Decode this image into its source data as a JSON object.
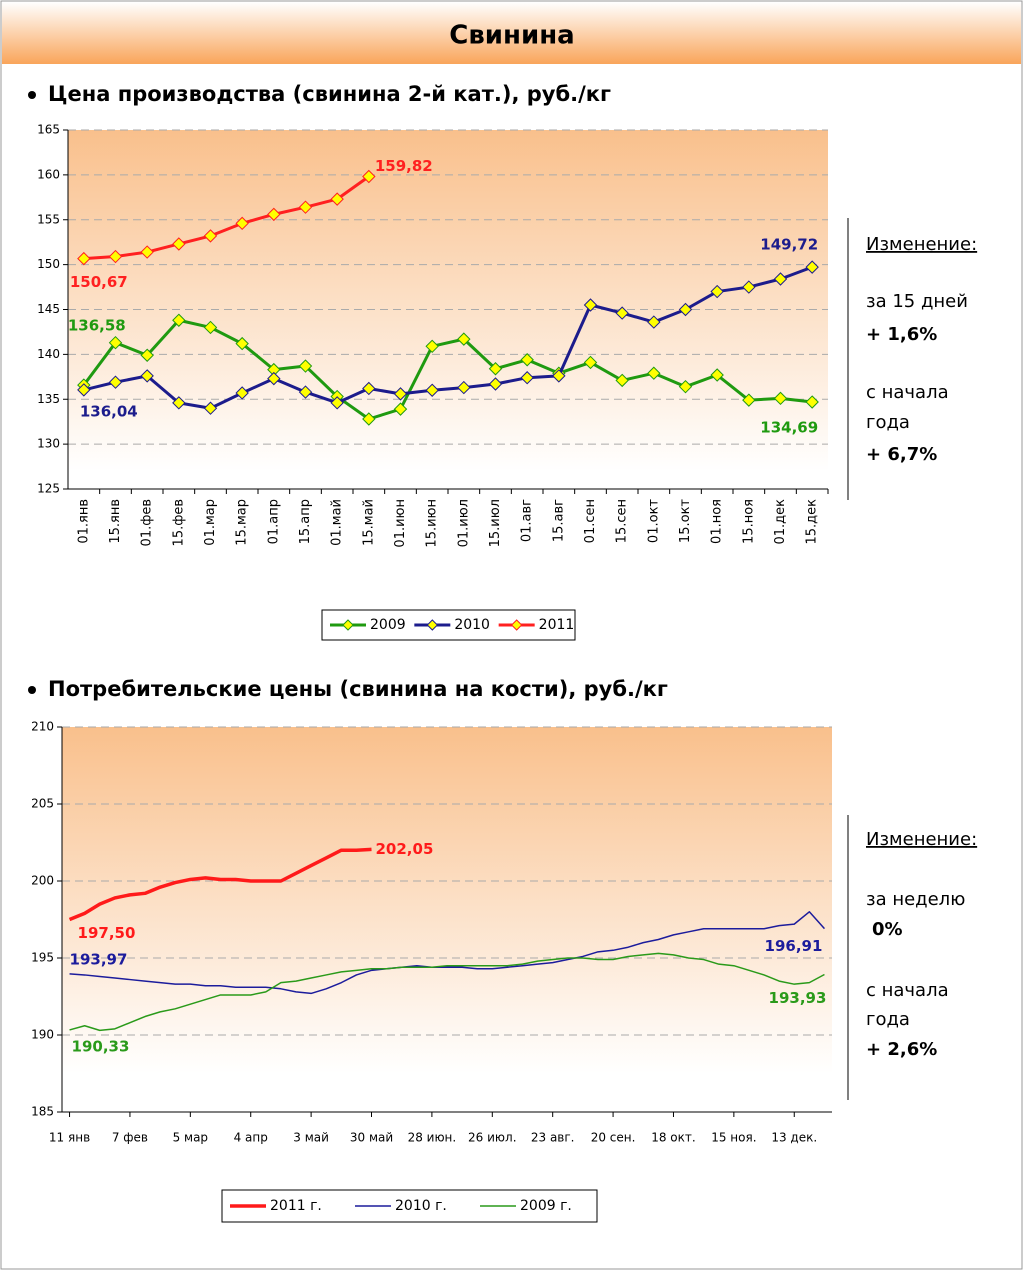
{
  "header": {
    "title": "Свинина"
  },
  "chart_data": [
    {
      "type": "line",
      "title": "Цена производства (свинина 2-й кат.), руб./кг",
      "categories": [
        "01.янв",
        "15.янв",
        "01.фев",
        "15.фев",
        "01.мар",
        "15.мар",
        "01.апр",
        "15.апр",
        "01.май",
        "15.май",
        "01.июн",
        "15.июн",
        "01.июл",
        "15.июл",
        "01.авг",
        "15.авг",
        "01.сен",
        "15.сен",
        "01.окт",
        "15.окт",
        "01.ноя",
        "15.ноя",
        "01.дек",
        "15.дек"
      ],
      "series": [
        {
          "name": "2009",
          "color": "#1f9a10",
          "width": 3,
          "values": [
            136.58,
            141.3,
            139.9,
            143.8,
            143.0,
            141.2,
            138.3,
            138.7,
            135.3,
            132.8,
            133.9,
            140.9,
            141.7,
            138.4,
            139.4,
            137.9,
            139.1,
            137.1,
            137.9,
            136.4,
            137.7,
            134.9,
            135.1,
            134.69
          ],
          "value_labels": [
            "136,58",
            null,
            null,
            null,
            null,
            null,
            null,
            null,
            null,
            null,
            null,
            null,
            null,
            null,
            null,
            null,
            null,
            null,
            null,
            null,
            null,
            null,
            null,
            "134,69"
          ]
        },
        {
          "name": "2010",
          "color": "#1c1c8c",
          "width": 3,
          "values": [
            136.04,
            136.9,
            137.6,
            134.6,
            134.0,
            135.7,
            137.3,
            135.8,
            134.6,
            136.2,
            135.6,
            136.0,
            136.3,
            136.7,
            137.4,
            137.6,
            145.5,
            144.6,
            143.6,
            145.0,
            147.0,
            147.5,
            148.4,
            149.72
          ],
          "value_labels": [
            "136,04",
            null,
            null,
            null,
            null,
            null,
            null,
            null,
            null,
            null,
            null,
            null,
            null,
            null,
            null,
            null,
            null,
            null,
            null,
            null,
            null,
            null,
            null,
            "149,72"
          ]
        },
        {
          "name": "2011",
          "color": "#ff2020",
          "width": 3,
          "values": [
            150.67,
            150.9,
            151.4,
            152.3,
            153.2,
            154.6,
            155.6,
            156.4,
            157.3,
            159.82,
            null,
            null,
            null,
            null,
            null,
            null,
            null,
            null,
            null,
            null,
            null,
            null,
            null,
            null
          ],
          "value_labels": [
            "150,67",
            null,
            null,
            null,
            null,
            null,
            null,
            null,
            null,
            "159,82",
            null,
            null,
            null,
            null,
            null,
            null,
            null,
            null,
            null,
            null,
            null,
            null,
            null,
            null
          ]
        }
      ],
      "markers": true,
      "marker_color": "#ffff00",
      "ylim": [
        125,
        165
      ],
      "yticks": [
        125,
        130,
        135,
        140,
        145,
        150,
        155,
        160,
        165
      ],
      "grid": true,
      "legend": "bottom",
      "annotations": [
        "Изменение:",
        "за 15 дней",
        "+ 1,6%",
        "с начала",
        "года",
        "+ 6,7%"
      ]
    },
    {
      "type": "line",
      "title": "Потребительские цены (свинина на кости), руб./кг",
      "categories": [
        "11 янв",
        null,
        null,
        null,
        "7 фев",
        null,
        null,
        null,
        "5 мар",
        null,
        null,
        null,
        "4 апр",
        null,
        null,
        null,
        "3 май",
        null,
        null,
        null,
        "30 май",
        null,
        null,
        null,
        "28 июн.",
        null,
        null,
        null,
        "26 июл.",
        null,
        null,
        null,
        "23 авг.",
        null,
        null,
        null,
        "20 сен.",
        null,
        null,
        null,
        "18 окт.",
        null,
        null,
        null,
        "15 ноя.",
        null,
        null,
        null,
        "13 дек.",
        null,
        null
      ],
      "series": [
        {
          "name": "2011 г.",
          "color": "#ff1a1a",
          "width": 3.5,
          "values": [
            197.5,
            197.9,
            198.5,
            198.9,
            199.1,
            199.2,
            199.6,
            199.9,
            200.1,
            200.2,
            200.1,
            200.1,
            200.0,
            200.0,
            200.0,
            200.5,
            201.0,
            201.5,
            202.0,
            202.0,
            202.05,
            null,
            null,
            null,
            null,
            null,
            null,
            null,
            null,
            null,
            null,
            null,
            null,
            null,
            null,
            null,
            null,
            null,
            null,
            null,
            null,
            null,
            null,
            null,
            null,
            null,
            null,
            null,
            null,
            null,
            null
          ],
          "value_labels": [
            "197,50",
            null,
            null,
            null,
            null,
            null,
            null,
            null,
            null,
            null,
            null,
            null,
            null,
            null,
            null,
            null,
            null,
            null,
            null,
            null,
            "202,05",
            null,
            null,
            null,
            null,
            null,
            null,
            null,
            null,
            null,
            null,
            null,
            null,
            null,
            null,
            null,
            null,
            null,
            null,
            null,
            null,
            null,
            null,
            null,
            null,
            null,
            null,
            null,
            null,
            null,
            null
          ]
        },
        {
          "name": "2010 г.",
          "color": "#1c1c9c",
          "width": 1.5,
          "values": [
            193.97,
            193.9,
            193.8,
            193.7,
            193.6,
            193.5,
            193.4,
            193.3,
            193.3,
            193.2,
            193.2,
            193.1,
            193.1,
            193.1,
            193.0,
            192.8,
            192.7,
            193.0,
            193.4,
            193.9,
            194.2,
            194.3,
            194.4,
            194.5,
            194.4,
            194.4,
            194.4,
            194.3,
            194.3,
            194.4,
            194.5,
            194.6,
            194.7,
            194.9,
            195.1,
            195.4,
            195.5,
            195.7,
            196.0,
            196.2,
            196.5,
            196.7,
            196.9,
            196.9,
            196.9,
            196.9,
            196.9,
            197.1,
            197.2,
            198.0,
            196.91
          ],
          "value_labels": [
            "193,97",
            null,
            null,
            null,
            null,
            null,
            null,
            null,
            null,
            null,
            null,
            null,
            null,
            null,
            null,
            null,
            null,
            null,
            null,
            null,
            null,
            null,
            null,
            null,
            null,
            null,
            null,
            null,
            null,
            null,
            null,
            null,
            null,
            null,
            null,
            null,
            null,
            null,
            null,
            null,
            null,
            null,
            null,
            null,
            null,
            null,
            null,
            null,
            null,
            null,
            "196,91"
          ]
        },
        {
          "name": "2009 г.",
          "color": "#2a9a1a",
          "width": 1.5,
          "values": [
            190.33,
            190.6,
            190.3,
            190.4,
            190.8,
            191.2,
            191.5,
            191.7,
            192.0,
            192.3,
            192.6,
            192.6,
            192.6,
            192.8,
            193.4,
            193.5,
            193.7,
            193.9,
            194.1,
            194.2,
            194.3,
            194.3,
            194.4,
            194.4,
            194.4,
            194.5,
            194.5,
            194.5,
            194.5,
            194.5,
            194.6,
            194.8,
            194.9,
            195.0,
            195.0,
            194.9,
            194.9,
            195.1,
            195.2,
            195.3,
            195.2,
            195.0,
            194.9,
            194.6,
            194.5,
            194.2,
            193.9,
            193.5,
            193.3,
            193.4,
            193.93
          ],
          "value_labels": [
            "190,33",
            null,
            null,
            null,
            null,
            null,
            null,
            null,
            null,
            null,
            null,
            null,
            null,
            null,
            null,
            null,
            null,
            null,
            null,
            null,
            null,
            null,
            null,
            null,
            null,
            null,
            null,
            null,
            null,
            null,
            null,
            null,
            null,
            null,
            null,
            null,
            null,
            null,
            null,
            null,
            null,
            null,
            null,
            null,
            null,
            null,
            null,
            null,
            null,
            null,
            "193,93"
          ]
        }
      ],
      "markers": false,
      "ylim": [
        185,
        210
      ],
      "yticks": [
        185,
        190,
        195,
        200,
        205,
        210
      ],
      "grid": true,
      "legend": "bottom",
      "annotations": [
        "Изменение:",
        "за неделю",
        "0%",
        "с начала",
        "года",
        "+ 2,6%"
      ]
    }
  ]
}
